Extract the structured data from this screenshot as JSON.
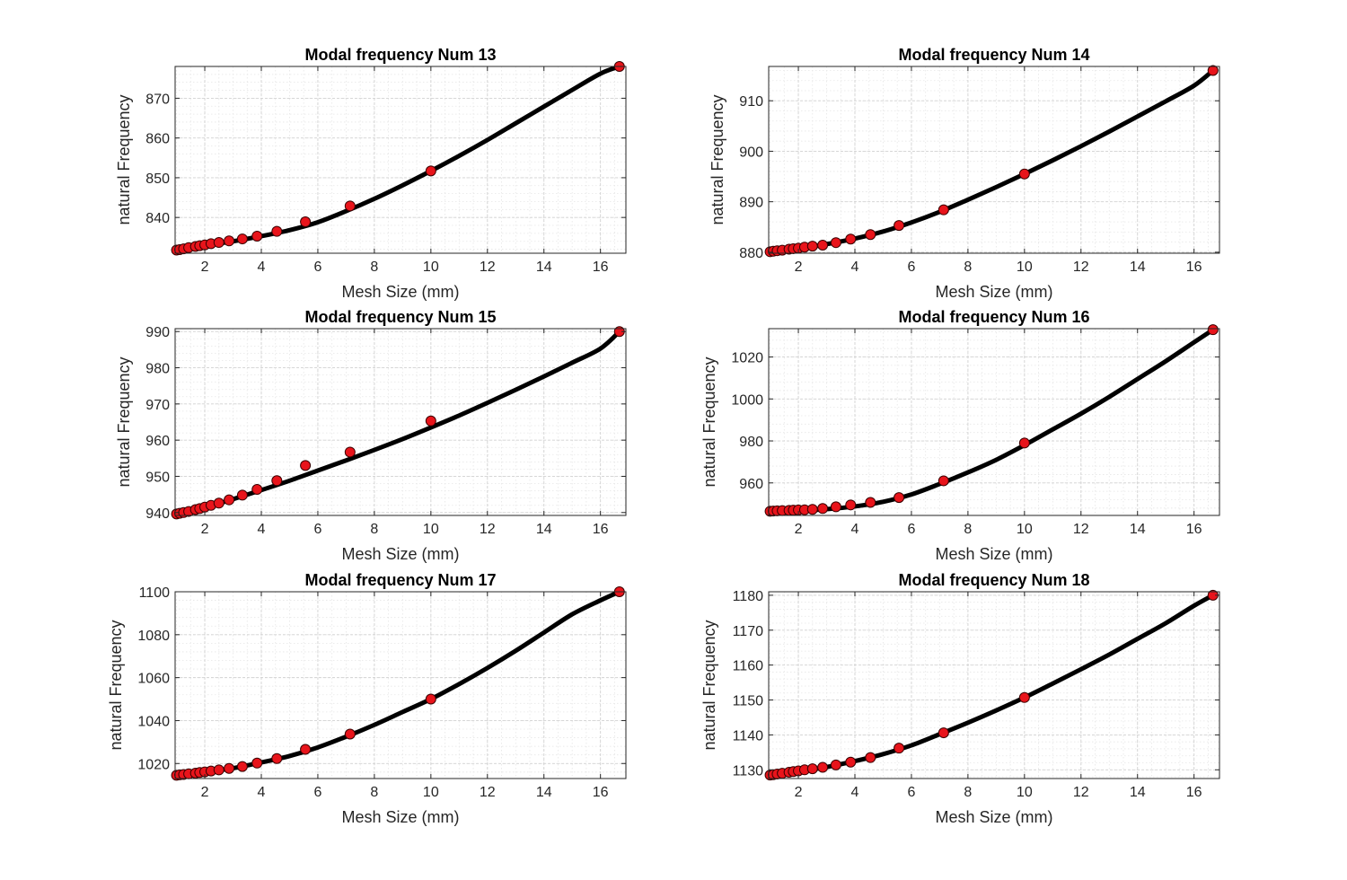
{
  "chart_data": [
    {
      "type": "line",
      "title": "Modal frequency Num 13",
      "xlabel": "Mesh Size (mm)",
      "ylabel": "natural Frequency",
      "xlim": [
        0.95,
        16.9
      ],
      "ylim": [
        831,
        878
      ],
      "xticks": [
        2,
        4,
        6,
        8,
        10,
        12,
        14,
        16
      ],
      "yticks": [
        840,
        850,
        860,
        870
      ],
      "grid": true,
      "minor_grid": true,
      "series": [
        {
          "type": "line",
          "style": "fit-curve",
          "color": "#000000",
          "x": [
            1.0,
            2.0,
            3.0,
            4.0,
            5.0,
            6.0,
            7.0,
            8.0,
            9.0,
            10.0,
            11.0,
            12.0,
            13.0,
            14.0,
            15.0,
            16.0,
            16.67
          ],
          "y": [
            831.8,
            833.0,
            834.0,
            835.3,
            836.8,
            838.8,
            841.6,
            844.7,
            848.1,
            851.7,
            855.5,
            859.5,
            863.7,
            867.9,
            872.1,
            876.2,
            878.0
          ]
        },
        {
          "type": "scatter",
          "style": "markers",
          "color": "#e8141b",
          "x": [
            1.0,
            1.11,
            1.25,
            1.43,
            1.67,
            1.82,
            2.0,
            2.22,
            2.5,
            2.86,
            3.33,
            3.85,
            4.55,
            5.56,
            7.14,
            10.0,
            16.67
          ],
          "y": [
            831.8,
            831.9,
            832.1,
            832.4,
            832.7,
            832.9,
            833.1,
            833.4,
            833.7,
            834.1,
            834.6,
            835.3,
            836.5,
            838.9,
            842.9,
            851.7,
            878.0
          ]
        }
      ]
    },
    {
      "type": "line",
      "title": "Modal frequency Num 14",
      "xlabel": "Mesh Size (mm)",
      "ylabel": "natural Frequency",
      "xlim": [
        0.95,
        16.9
      ],
      "ylim": [
        879.8,
        916.8
      ],
      "xticks": [
        2,
        4,
        6,
        8,
        10,
        12,
        14,
        16
      ],
      "yticks": [
        880,
        890,
        900,
        910
      ],
      "grid": true,
      "minor_grid": true,
      "series": [
        {
          "type": "line",
          "style": "fit-curve",
          "color": "#000000",
          "x": [
            1.0,
            2.0,
            3.0,
            4.0,
            5.0,
            6.0,
            7.0,
            8.0,
            9.0,
            10.0,
            11.0,
            12.0,
            13.0,
            14.0,
            15.0,
            16.0,
            16.67
          ],
          "y": [
            880.1,
            880.7,
            881.6,
            882.7,
            884.1,
            885.9,
            888.0,
            890.4,
            892.9,
            895.5,
            898.2,
            901.0,
            903.9,
            906.9,
            909.9,
            913.0,
            916.0
          ]
        },
        {
          "type": "scatter",
          "style": "markers",
          "color": "#e8141b",
          "x": [
            1.0,
            1.11,
            1.25,
            1.43,
            1.67,
            1.82,
            2.0,
            2.22,
            2.5,
            2.86,
            3.33,
            3.85,
            4.55,
            5.56,
            7.14,
            10.0,
            16.67
          ],
          "y": [
            880.1,
            880.2,
            880.3,
            880.4,
            880.6,
            880.7,
            880.8,
            881.0,
            881.2,
            881.4,
            881.9,
            882.6,
            883.5,
            885.3,
            888.4,
            895.5,
            916.0
          ]
        }
      ]
    },
    {
      "type": "line",
      "title": "Modal frequency Num 15",
      "xlabel": "Mesh Size (mm)",
      "ylabel": "natural Frequency",
      "xlim": [
        0.95,
        16.9
      ],
      "ylim": [
        939.2,
        990.8
      ],
      "xticks": [
        2,
        4,
        6,
        8,
        10,
        12,
        14,
        16
      ],
      "yticks": [
        940,
        950,
        960,
        970,
        980,
        990
      ],
      "grid": true,
      "minor_grid": true,
      "series": [
        {
          "type": "line",
          "style": "fit-curve",
          "color": "#000000",
          "x": [
            1.0,
            2.0,
            3.0,
            4.0,
            5.0,
            6.0,
            7.0,
            8.0,
            9.0,
            10.0,
            11.0,
            12.0,
            13.0,
            14.0,
            15.0,
            16.0,
            16.67
          ],
          "y": [
            939.6,
            941.4,
            943.7,
            946.2,
            948.8,
            951.6,
            954.4,
            957.3,
            960.3,
            963.5,
            966.8,
            970.3,
            973.9,
            977.6,
            981.4,
            985.3,
            990.0
          ]
        },
        {
          "type": "scatter",
          "style": "markers",
          "color": "#e8141b",
          "x": [
            1.0,
            1.11,
            1.25,
            1.43,
            1.67,
            1.82,
            2.0,
            2.22,
            2.5,
            2.86,
            3.33,
            3.85,
            4.55,
            5.56,
            7.14,
            10.0,
            16.67
          ],
          "y": [
            939.6,
            939.8,
            940.0,
            940.3,
            940.8,
            941.1,
            941.5,
            942.0,
            942.6,
            943.5,
            944.8,
            946.4,
            948.8,
            953.0,
            956.7,
            965.3,
            990.0
          ]
        }
      ]
    },
    {
      "type": "line",
      "title": "Modal frequency Num 16",
      "xlabel": "Mesh Size (mm)",
      "ylabel": "natural Frequency",
      "xlim": [
        0.95,
        16.9
      ],
      "ylim": [
        944.5,
        1033.5
      ],
      "xticks": [
        2,
        4,
        6,
        8,
        10,
        12,
        14,
        16
      ],
      "yticks": [
        960,
        980,
        1000,
        1020
      ],
      "grid": true,
      "minor_grid": true,
      "series": [
        {
          "type": "line",
          "style": "fit-curve",
          "color": "#000000",
          "x": [
            1.0,
            2.0,
            3.0,
            4.0,
            5.0,
            6.0,
            7.0,
            8.0,
            9.0,
            10.0,
            11.0,
            12.0,
            13.0,
            14.0,
            15.0,
            16.0,
            16.67
          ],
          "y": [
            946.5,
            946.8,
            947.5,
            948.8,
            951.0,
            954.5,
            959.5,
            965.0,
            971.0,
            978.0,
            985.5,
            993.0,
            1001.0,
            1009.5,
            1018.0,
            1027.0,
            1033.0
          ]
        },
        {
          "type": "scatter",
          "style": "markers",
          "color": "#e8141b",
          "x": [
            1.0,
            1.11,
            1.25,
            1.43,
            1.67,
            1.82,
            2.0,
            2.22,
            2.5,
            2.86,
            3.33,
            3.85,
            4.55,
            5.56,
            7.14,
            10.0,
            16.67
          ],
          "y": [
            946.5,
            946.6,
            946.7,
            946.8,
            946.9,
            947.0,
            947.1,
            947.2,
            947.4,
            947.8,
            948.6,
            949.5,
            950.7,
            953.0,
            961.0,
            979.0,
            1033.0
          ]
        }
      ]
    },
    {
      "type": "line",
      "title": "Modal frequency Num 17",
      "xlabel": "Mesh Size (mm)",
      "ylabel": "natural Frequency",
      "xlim": [
        0.95,
        16.9
      ],
      "ylim": [
        1013,
        1100
      ],
      "xticks": [
        2,
        4,
        6,
        8,
        10,
        12,
        14,
        16
      ],
      "yticks": [
        1020,
        1040,
        1060,
        1080,
        1100
      ],
      "grid": true,
      "minor_grid": true,
      "series": [
        {
          "type": "line",
          "style": "fit-curve",
          "color": "#000000",
          "x": [
            1.0,
            2.0,
            3.0,
            4.0,
            5.0,
            6.0,
            7.0,
            8.0,
            9.0,
            10.0,
            11.0,
            12.0,
            13.0,
            14.0,
            15.0,
            16.0,
            16.67
          ],
          "y": [
            1014.5,
            1016.0,
            1017.8,
            1020.5,
            1023.5,
            1027.5,
            1032.5,
            1038.0,
            1044.0,
            1050.0,
            1057.0,
            1064.5,
            1072.5,
            1081.0,
            1089.5,
            1096.0,
            1100.0
          ]
        },
        {
          "type": "scatter",
          "style": "markers",
          "color": "#e8141b",
          "x": [
            1.0,
            1.11,
            1.25,
            1.43,
            1.67,
            1.82,
            2.0,
            2.22,
            2.5,
            2.86,
            3.33,
            3.85,
            4.55,
            5.56,
            7.14,
            10.0,
            16.67
          ],
          "y": [
            1014.5,
            1014.7,
            1014.9,
            1015.2,
            1015.5,
            1015.8,
            1016.1,
            1016.5,
            1017.0,
            1017.7,
            1018.6,
            1020.2,
            1022.3,
            1026.6,
            1033.7,
            1050.0,
            1100.0
          ]
        }
      ]
    },
    {
      "type": "line",
      "title": "Modal frequency Num 18",
      "xlabel": "Mesh Size (mm)",
      "ylabel": "natural Frequency",
      "xlim": [
        0.95,
        16.9
      ],
      "ylim": [
        1127.5,
        1181
      ],
      "xticks": [
        2,
        4,
        6,
        8,
        10,
        12,
        14,
        16
      ],
      "yticks": [
        1130,
        1140,
        1150,
        1160,
        1170,
        1180
      ],
      "grid": true,
      "minor_grid": true,
      "series": [
        {
          "type": "line",
          "style": "fit-curve",
          "color": "#000000",
          "x": [
            1.0,
            2.0,
            3.0,
            4.0,
            5.0,
            6.0,
            7.0,
            8.0,
            9.0,
            10.0,
            11.0,
            12.0,
            13.0,
            14.0,
            15.0,
            16.0,
            16.67
          ],
          "y": [
            1128.5,
            1129.5,
            1130.8,
            1132.5,
            1134.5,
            1137.0,
            1140.2,
            1143.5,
            1147.0,
            1150.7,
            1154.7,
            1158.8,
            1163.0,
            1167.5,
            1172.0,
            1177.0,
            1180.0
          ]
        },
        {
          "type": "scatter",
          "style": "markers",
          "color": "#e8141b",
          "x": [
            1.0,
            1.11,
            1.25,
            1.43,
            1.67,
            1.82,
            2.0,
            2.22,
            2.5,
            2.86,
            3.33,
            3.85,
            4.55,
            5.56,
            7.14,
            10.0,
            16.67
          ],
          "y": [
            1128.5,
            1128.6,
            1128.8,
            1129.0,
            1129.3,
            1129.5,
            1129.7,
            1130.0,
            1130.3,
            1130.7,
            1131.4,
            1132.2,
            1133.5,
            1136.2,
            1140.6,
            1150.7,
            1180.0
          ]
        }
      ]
    }
  ]
}
